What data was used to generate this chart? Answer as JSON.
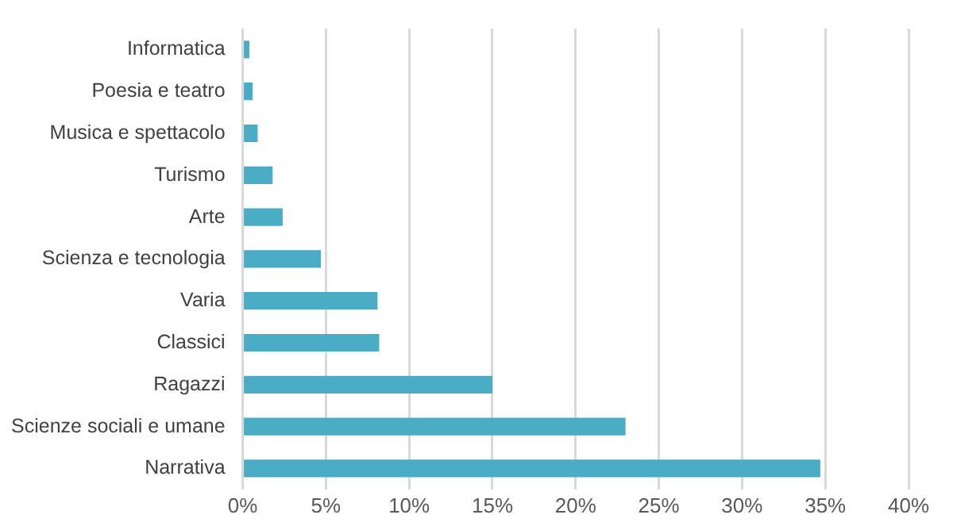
{
  "chart_data": {
    "type": "bar",
    "orientation": "horizontal",
    "categories": [
      "Informatica",
      "Poesia e teatro",
      "Musica e spettacolo",
      "Turismo",
      "Arte",
      "Scienza e tecnologia",
      "Varia",
      "Classici",
      "Ragazzi",
      "Scienze sociali e umane",
      "Narrativa"
    ],
    "values": [
      0.4,
      0.6,
      0.9,
      1.8,
      2.4,
      4.7,
      8.1,
      8.2,
      15.0,
      23.0,
      34.7
    ],
    "color": "#4bacc6",
    "xlim": [
      0,
      40
    ],
    "xticks": [
      {
        "value": 0,
        "label": "0%"
      },
      {
        "value": 5,
        "label": "5%"
      },
      {
        "value": 10,
        "label": "10%"
      },
      {
        "value": 15,
        "label": "15%"
      },
      {
        "value": 20,
        "label": "20%"
      },
      {
        "value": 25,
        "label": "25%"
      },
      {
        "value": 30,
        "label": "30%"
      },
      {
        "value": 35,
        "label": "35%"
      },
      {
        "value": 40,
        "label": "40%"
      }
    ],
    "grid": "x",
    "legend": false
  }
}
